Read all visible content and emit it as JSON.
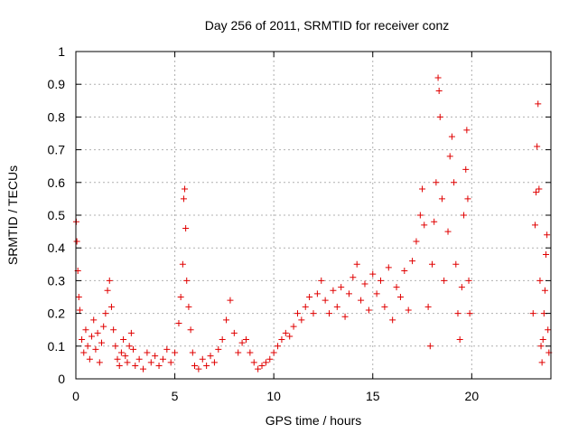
{
  "chart_data": {
    "type": "scatter",
    "title": "Day 256 of 2011, SRMTID for receiver conz",
    "xlabel": "GPS time / hours",
    "ylabel": "SRMTID / TECUs",
    "xlim": [
      0,
      24
    ],
    "ylim": [
      0,
      1
    ],
    "xticks": [
      "0",
      "5",
      "10",
      "15",
      "20"
    ],
    "yticks": [
      "0",
      "0.1",
      "0.2",
      "0.3",
      "0.4",
      "0.5",
      "0.6",
      "0.7",
      "0.8",
      "0.9",
      "1"
    ],
    "xtick_values": [
      0,
      5,
      10,
      15,
      20
    ],
    "ytick_values": [
      0,
      0.1,
      0.2,
      0.3,
      0.4,
      0.5,
      0.6,
      0.7,
      0.8,
      0.9,
      1.0
    ],
    "grid": true,
    "marker": "+",
    "color": "#e00000",
    "series": [
      {
        "name": "SRMTID",
        "points": [
          [
            0.02,
            0.48
          ],
          [
            0.05,
            0.42
          ],
          [
            0.1,
            0.33
          ],
          [
            0.15,
            0.25
          ],
          [
            0.2,
            0.21
          ],
          [
            0.3,
            0.12
          ],
          [
            0.4,
            0.08
          ],
          [
            0.5,
            0.15
          ],
          [
            0.6,
            0.1
          ],
          [
            0.7,
            0.06
          ],
          [
            0.8,
            0.13
          ],
          [
            0.9,
            0.18
          ],
          [
            1.0,
            0.09
          ],
          [
            1.1,
            0.14
          ],
          [
            1.2,
            0.05
          ],
          [
            1.3,
            0.11
          ],
          [
            1.4,
            0.16
          ],
          [
            1.5,
            0.2
          ],
          [
            1.6,
            0.27
          ],
          [
            1.7,
            0.3
          ],
          [
            1.8,
            0.22
          ],
          [
            1.9,
            0.15
          ],
          [
            2.0,
            0.1
          ],
          [
            2.1,
            0.06
          ],
          [
            2.2,
            0.04
          ],
          [
            2.3,
            0.08
          ],
          [
            2.4,
            0.12
          ],
          [
            2.5,
            0.07
          ],
          [
            2.6,
            0.05
          ],
          [
            2.7,
            0.1
          ],
          [
            2.8,
            0.14
          ],
          [
            2.9,
            0.09
          ],
          [
            3.0,
            0.04
          ],
          [
            3.2,
            0.06
          ],
          [
            3.4,
            0.03
          ],
          [
            3.6,
            0.08
          ],
          [
            3.8,
            0.05
          ],
          [
            4.0,
            0.07
          ],
          [
            4.2,
            0.04
          ],
          [
            4.4,
            0.06
          ],
          [
            4.6,
            0.09
          ],
          [
            4.8,
            0.05
          ],
          [
            5.0,
            0.08
          ],
          [
            5.2,
            0.17
          ],
          [
            5.3,
            0.25
          ],
          [
            5.4,
            0.35
          ],
          [
            5.45,
            0.55
          ],
          [
            5.5,
            0.58
          ],
          [
            5.55,
            0.46
          ],
          [
            5.6,
            0.3
          ],
          [
            5.7,
            0.22
          ],
          [
            5.8,
            0.15
          ],
          [
            5.9,
            0.08
          ],
          [
            6.0,
            0.04
          ],
          [
            6.2,
            0.03
          ],
          [
            6.4,
            0.06
          ],
          [
            6.6,
            0.04
          ],
          [
            6.8,
            0.07
          ],
          [
            7.0,
            0.05
          ],
          [
            7.2,
            0.09
          ],
          [
            7.4,
            0.12
          ],
          [
            7.6,
            0.18
          ],
          [
            7.8,
            0.24
          ],
          [
            8.0,
            0.14
          ],
          [
            8.2,
            0.08
          ],
          [
            8.4,
            0.11
          ],
          [
            8.6,
            0.12
          ],
          [
            8.8,
            0.08
          ],
          [
            9.0,
            0.05
          ],
          [
            9.2,
            0.03
          ],
          [
            9.4,
            0.04
          ],
          [
            9.6,
            0.05
          ],
          [
            9.8,
            0.06
          ],
          [
            10.0,
            0.08
          ],
          [
            10.2,
            0.1
          ],
          [
            10.4,
            0.12
          ],
          [
            10.6,
            0.14
          ],
          [
            10.8,
            0.13
          ],
          [
            11.0,
            0.16
          ],
          [
            11.2,
            0.2
          ],
          [
            11.4,
            0.18
          ],
          [
            11.6,
            0.22
          ],
          [
            11.8,
            0.25
          ],
          [
            12.0,
            0.2
          ],
          [
            12.2,
            0.26
          ],
          [
            12.4,
            0.3
          ],
          [
            12.6,
            0.24
          ],
          [
            12.8,
            0.2
          ],
          [
            13.0,
            0.27
          ],
          [
            13.2,
            0.22
          ],
          [
            13.4,
            0.28
          ],
          [
            13.6,
            0.19
          ],
          [
            13.8,
            0.26
          ],
          [
            14.0,
            0.31
          ],
          [
            14.2,
            0.35
          ],
          [
            14.4,
            0.24
          ],
          [
            14.6,
            0.29
          ],
          [
            14.8,
            0.21
          ],
          [
            15.0,
            0.32
          ],
          [
            15.2,
            0.26
          ],
          [
            15.4,
            0.3
          ],
          [
            15.6,
            0.22
          ],
          [
            15.8,
            0.34
          ],
          [
            16.0,
            0.18
          ],
          [
            16.2,
            0.28
          ],
          [
            16.4,
            0.25
          ],
          [
            16.6,
            0.33
          ],
          [
            16.8,
            0.21
          ],
          [
            17.0,
            0.36
          ],
          [
            17.2,
            0.42
          ],
          [
            17.4,
            0.5
          ],
          [
            17.5,
            0.58
          ],
          [
            17.6,
            0.47
          ],
          [
            17.8,
            0.22
          ],
          [
            17.9,
            0.1
          ],
          [
            18.0,
            0.35
          ],
          [
            18.1,
            0.48
          ],
          [
            18.2,
            0.6
          ],
          [
            18.3,
            0.92
          ],
          [
            18.35,
            0.88
          ],
          [
            18.4,
            0.8
          ],
          [
            18.5,
            0.55
          ],
          [
            18.6,
            0.3
          ],
          [
            18.8,
            0.45
          ],
          [
            18.9,
            0.68
          ],
          [
            19.0,
            0.74
          ],
          [
            19.1,
            0.6
          ],
          [
            19.2,
            0.35
          ],
          [
            19.3,
            0.2
          ],
          [
            19.4,
            0.12
          ],
          [
            19.5,
            0.28
          ],
          [
            19.6,
            0.5
          ],
          [
            19.7,
            0.64
          ],
          [
            19.75,
            0.76
          ],
          [
            19.8,
            0.55
          ],
          [
            19.85,
            0.3
          ],
          [
            19.9,
            0.2
          ],
          [
            23.1,
            0.2
          ],
          [
            23.2,
            0.47
          ],
          [
            23.25,
            0.57
          ],
          [
            23.3,
            0.71
          ],
          [
            23.35,
            0.84
          ],
          [
            23.4,
            0.58
          ],
          [
            23.45,
            0.3
          ],
          [
            23.5,
            0.1
          ],
          [
            23.55,
            0.05
          ],
          [
            23.6,
            0.12
          ],
          [
            23.65,
            0.2
          ],
          [
            23.7,
            0.27
          ],
          [
            23.75,
            0.38
          ],
          [
            23.8,
            0.44
          ],
          [
            23.85,
            0.15
          ],
          [
            23.9,
            0.08
          ]
        ]
      }
    ]
  }
}
